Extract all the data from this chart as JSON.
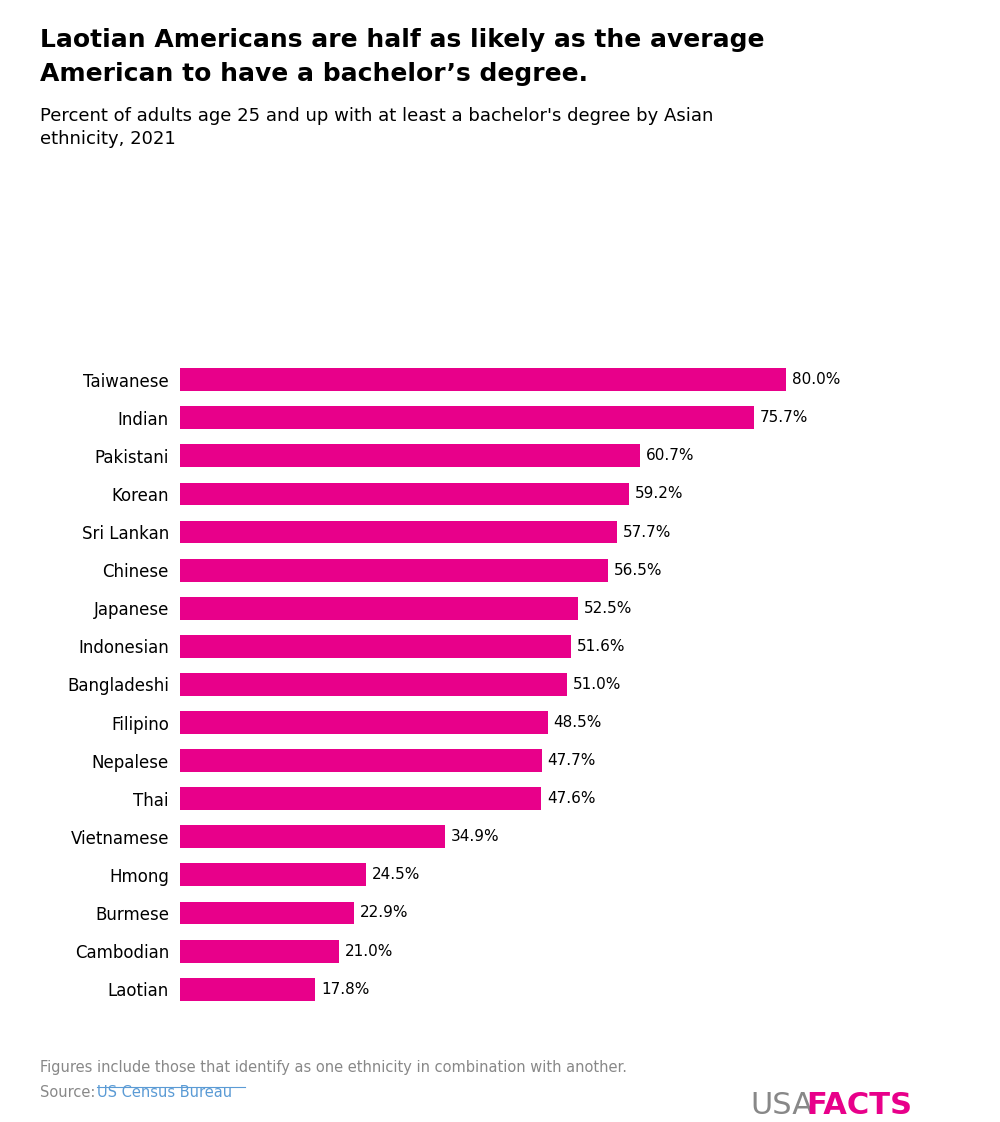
{
  "title_line1": "Laotian Americans are half as likely as the average",
  "title_line2": "American to have a bachelor’s degree.",
  "subtitle": "Percent of adults age 25 and up with at least a bachelor's degree by Asian\nethnicity, 2021",
  "categories": [
    "Taiwanese",
    "Indian",
    "Pakistani",
    "Korean",
    "Sri Lankan",
    "Chinese",
    "Japanese",
    "Indonesian",
    "Bangladeshi",
    "Filipino",
    "Nepalese",
    "Thai",
    "Vietnamese",
    "Hmong",
    "Burmese",
    "Cambodian",
    "Laotian"
  ],
  "values": [
    80.0,
    75.7,
    60.7,
    59.2,
    57.7,
    56.5,
    52.5,
    51.6,
    51.0,
    48.5,
    47.7,
    47.6,
    34.9,
    24.5,
    22.9,
    21.0,
    17.8
  ],
  "bar_color": "#E8008A",
  "label_color": "#000000",
  "title_color": "#000000",
  "subtitle_color": "#000000",
  "footnote_color": "#888888",
  "source_color": "#888888",
  "source_link_color": "#5B9BD5",
  "background_color": "#FFFFFF",
  "bar_height": 0.6,
  "xlim": [
    0,
    95
  ],
  "footnote": "Figures include those that identify as one ethnicity in combination with another.",
  "source_text": "Source: ",
  "source_link": "US Census Bureau",
  "usa_text": "USA",
  "facts_text": "FACTS",
  "usafacts_color_usa": "#888888",
  "usafacts_color_facts": "#E8008A"
}
